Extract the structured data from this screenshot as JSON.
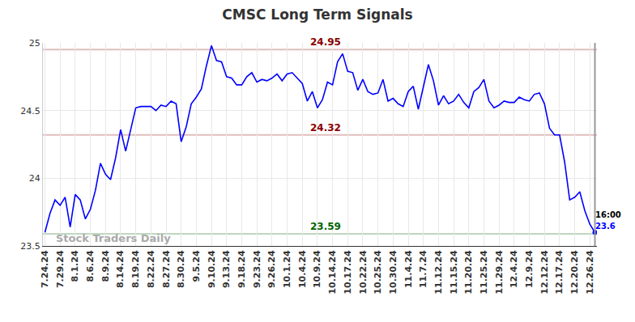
{
  "chart_data": {
    "type": "line",
    "title": "CMSC Long Term Signals",
    "watermark": "Stock Traders Daily",
    "color": "#0000ff",
    "categories": [
      "7.24.24",
      null,
      null,
      "7.29.24",
      null,
      null,
      "8.1.24",
      null,
      null,
      "8.6.24",
      null,
      null,
      "8.9.24",
      null,
      null,
      "8.14.24",
      null,
      null,
      "8.19.24",
      null,
      null,
      "8.22.24",
      null,
      null,
      "8.27.24",
      null,
      null,
      "8.30.24",
      null,
      null,
      "9.5.24",
      null,
      null,
      "9.10.24",
      null,
      null,
      "9.13.24",
      null,
      null,
      "9.18.24",
      null,
      null,
      "9.23.24",
      null,
      null,
      "9.26.24",
      null,
      null,
      "10.1.24",
      null,
      null,
      "10.4.24",
      null,
      null,
      "10.9.24",
      null,
      null,
      "10.14.24",
      null,
      null,
      "10.17.24",
      null,
      null,
      "10.22.24",
      null,
      null,
      "10.25.24",
      null,
      null,
      "10.30.24",
      null,
      null,
      "11.4.24",
      null,
      null,
      "11.7.24",
      null,
      null,
      "11.12.24",
      null,
      null,
      "11.15.24",
      null,
      null,
      "11.20.24",
      null,
      null,
      "11.25.24",
      null,
      null,
      "11.29.24",
      null,
      null,
      "12.4.24",
      null,
      null,
      "12.9.24",
      null,
      null,
      "12.12.24",
      null,
      null,
      "12.17.24",
      null,
      null,
      "12.20.24",
      null,
      null,
      "12.26.24",
      null
    ],
    "values": [
      23.6,
      23.74,
      23.84,
      23.8,
      23.86,
      23.64,
      23.88,
      23.84,
      23.7,
      23.77,
      23.91,
      24.11,
      24.03,
      23.99,
      24.15,
      24.36,
      24.2,
      24.37,
      24.52,
      24.53,
      24.53,
      24.53,
      24.5,
      24.54,
      24.53,
      24.57,
      24.55,
      24.27,
      24.38,
      24.55,
      24.6,
      24.66,
      24.83,
      24.98,
      24.87,
      24.86,
      24.75,
      24.74,
      24.69,
      24.69,
      24.75,
      24.78,
      24.71,
      24.73,
      24.72,
      24.74,
      24.77,
      24.72,
      24.77,
      24.78,
      24.74,
      24.7,
      24.57,
      24.64,
      24.52,
      24.58,
      24.71,
      24.69,
      24.86,
      24.92,
      24.79,
      24.78,
      24.65,
      24.73,
      24.64,
      24.62,
      24.63,
      24.73,
      24.57,
      24.59,
      24.55,
      24.53,
      24.64,
      24.68,
      24.51,
      24.68,
      24.84,
      24.72,
      24.54,
      24.61,
      24.55,
      24.57,
      24.62,
      24.56,
      24.52,
      24.64,
      24.67,
      24.73,
      24.57,
      24.52,
      24.54,
      24.57,
      24.56,
      24.56,
      24.6,
      24.58,
      24.57,
      24.62,
      24.63,
      24.55,
      24.37,
      24.32,
      24.32,
      24.12,
      23.84,
      23.86,
      23.9,
      23.76,
      23.66,
      23.6
    ],
    "reference_lines": [
      {
        "value": 24.95,
        "color": "#8b0000"
      },
      {
        "value": 24.32,
        "color": "#8b0000"
      },
      {
        "value": 23.59,
        "color": "#006400"
      }
    ],
    "end_label": {
      "time": "16:00",
      "value": 23.6
    },
    "ylim": [
      23.5,
      25
    ],
    "yticks": [
      23.5,
      24,
      24.5,
      25
    ],
    "grid": true
  }
}
